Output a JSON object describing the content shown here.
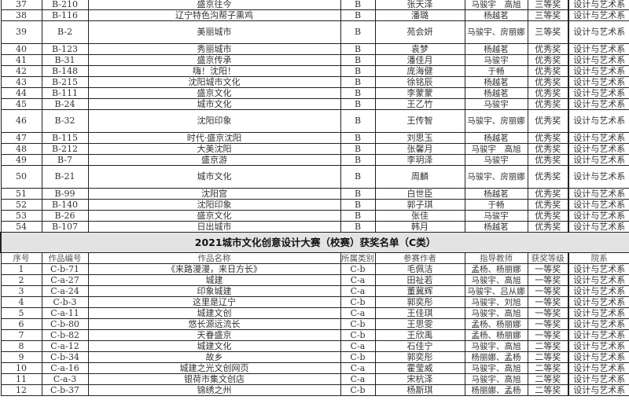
{
  "section_b_rows": [
    {
      "no": "37",
      "code": "B-210",
      "title": "盛京往今",
      "category": "B",
      "author": "张天泽",
      "teacher": "马骏宇　高旭",
      "award": "三等奖",
      "dept": "设计与艺术系"
    },
    {
      "no": "38",
      "code": "B-116",
      "title": "辽宁特色沟帮子熏鸡",
      "category": "B",
      "author": "潘璐",
      "teacher": "杨越茗",
      "award": "三等奖",
      "dept": "设计与艺术系"
    },
    {
      "no": "39",
      "code": "B-2",
      "title": "美丽城市",
      "category": "B",
      "author": "苑会妍",
      "teacher": "马骏宇、房丽娜",
      "award": "三等奖",
      "dept": "设计与艺术系",
      "tall": true
    },
    {
      "no": "40",
      "code": "B-123",
      "title": "秀丽城市",
      "category": "B",
      "author": "袁梦",
      "teacher": "杨越茗",
      "award": "优秀奖",
      "dept": "设计与艺术系"
    },
    {
      "no": "41",
      "code": "B-31",
      "title": "盛京传承",
      "category": "B",
      "author": "潘佳月",
      "teacher": "马骏宇",
      "award": "优秀奖",
      "dept": "设计与艺术系"
    },
    {
      "no": "42",
      "code": "B-148",
      "title": "嗨！沈阳！",
      "category": "B",
      "author": "庞海健",
      "teacher": "于畅",
      "award": "优秀奖",
      "dept": "设计与艺术系"
    },
    {
      "no": "43",
      "code": "B-215",
      "title": "沈阳城市文化",
      "category": "B",
      "author": "徐铭辰",
      "teacher": "杨越茗",
      "award": "优秀奖",
      "dept": "设计与艺术系"
    },
    {
      "no": "44",
      "code": "B-111",
      "title": "盛京文化",
      "category": "B",
      "author": "李蒙蒙",
      "teacher": "杨越茗",
      "award": "优秀奖",
      "dept": "设计与艺术系"
    },
    {
      "no": "45",
      "code": "B-24",
      "title": "城市文化",
      "category": "B",
      "author": "王乙竹",
      "teacher": "马骏宇",
      "award": "优秀奖",
      "dept": "设计与艺术系"
    },
    {
      "no": "46",
      "code": "B-32",
      "title": "沈阳印象",
      "category": "B",
      "author": "王传智",
      "teacher": "马骏宇、房丽娜",
      "award": "优秀奖",
      "dept": "设计与艺术系",
      "tall": true
    },
    {
      "no": "47",
      "code": "B-115",
      "title": "时代·盛京沈阳",
      "category": "B",
      "author": "刘思玉",
      "teacher": "杨越茗",
      "award": "优秀奖",
      "dept": "设计与艺术系"
    },
    {
      "no": "48",
      "code": "B-212",
      "title": "大美沈阳",
      "category": "B",
      "author": "张馨月",
      "teacher": "马骏宇　高旭",
      "award": "优秀奖",
      "dept": "设计与艺术系"
    },
    {
      "no": "49",
      "code": "B-7",
      "title": "盛京游",
      "category": "B",
      "author": "李玥泽",
      "teacher": "马骏宇",
      "award": "优秀奖",
      "dept": "设计与艺术系"
    },
    {
      "no": "50",
      "code": "B-21",
      "title": "城市文化",
      "category": "B",
      "author": "周麟",
      "teacher": "马骏宇、房丽娜",
      "award": "优秀奖",
      "dept": "设计与艺术系",
      "tall": true
    },
    {
      "no": "51",
      "code": "B-99",
      "title": "沈阳宫",
      "category": "B",
      "author": "白世臣",
      "teacher": "杨越茗",
      "award": "优秀奖",
      "dept": "设计与艺术系"
    },
    {
      "no": "52",
      "code": "B-140",
      "title": "沈阳印象",
      "category": "B",
      "author": "郭子琪",
      "teacher": "于畅",
      "award": "优秀奖",
      "dept": "设计与艺术系"
    },
    {
      "no": "53",
      "code": "B-26",
      "title": "盛京文化",
      "category": "B",
      "author": "张佳",
      "teacher": "马骏宇",
      "award": "优秀奖",
      "dept": "设计与艺术系"
    },
    {
      "no": "54",
      "code": "B-107",
      "title": "日出城市",
      "category": "B",
      "author": "韩月",
      "teacher": "杨越茗",
      "award": "优秀奖",
      "dept": "设计与艺术系"
    }
  ],
  "section_c": {
    "title": "2021城市文化创意设计大赛（校赛）获奖名单（C类）",
    "headers": {
      "no": "序号",
      "code": "作品编号",
      "title": "作品名称",
      "category": "所属类别",
      "author": "参赛作者",
      "teacher": "指导教师",
      "award": "获奖等级",
      "dept": "院系"
    },
    "rows": [
      {
        "no": "1",
        "code": "C-b-71",
        "title": "《来路漫漫，来日方长》",
        "category": "C-b",
        "author": "毛佩洁",
        "teacher": "孟杨、杨丽娜",
        "award": "一等奖",
        "dept": "设计与艺术系"
      },
      {
        "no": "2",
        "code": "C-a-27",
        "title": "城建",
        "category": "C-a",
        "author": "田祉若",
        "teacher": "马骏宇、高旭",
        "award": "一等奖",
        "dept": "设计与艺术系"
      },
      {
        "no": "3",
        "code": "C-a-24",
        "title": "印象城建",
        "category": "C-a",
        "author": "董冀辉",
        "teacher": "马骏宇、吕从娜",
        "award": "一等奖",
        "dept": "设计与艺术系"
      },
      {
        "no": "4",
        "code": "C-b-3",
        "title": "这里是辽宁",
        "category": "C-b",
        "author": "郭奕彤",
        "teacher": "马骏宇、刘旭",
        "award": "一等奖",
        "dept": "设计与艺术系"
      },
      {
        "no": "5",
        "code": "C-a-11",
        "title": "城建文创",
        "category": "C-a",
        "author": "王佳琪",
        "teacher": "马骏宇、高旭",
        "award": "一等奖",
        "dept": "设计与艺术系"
      },
      {
        "no": "6",
        "code": "C-b-80",
        "title": "悠长源远流长",
        "category": "C-b",
        "author": "王思雯",
        "teacher": "孟杨、杨丽娜",
        "award": "一等奖",
        "dept": "设计与艺术系"
      },
      {
        "no": "7",
        "code": "C-b-82",
        "title": "天眷盛京",
        "category": "C-b",
        "author": "王欣禹",
        "teacher": "孟杨、杨丽娜",
        "award": "一等奖",
        "dept": "设计与艺术系"
      },
      {
        "no": "8",
        "code": "C-a-12",
        "title": "城建文化",
        "category": "C-a",
        "author": "石佳宁",
        "teacher": "马骏宇、高旭",
        "award": "二等奖",
        "dept": "设计与艺术系"
      },
      {
        "no": "9",
        "code": "C-b-34",
        "title": "故乡",
        "category": "C-b",
        "author": "郭奕彤",
        "teacher": "杨丽娜、孟杨",
        "award": "二等奖",
        "dept": "设计与艺术系"
      },
      {
        "no": "10",
        "code": "C-a-16",
        "title": "城建之光文创网页",
        "category": "C-a",
        "author": "霍莹威",
        "teacher": "马骏宇、高旭",
        "award": "二等奖",
        "dept": "设计与艺术系"
      },
      {
        "no": "11",
        "code": "C-a-3",
        "title": "银荷市集文创店",
        "category": "C-a",
        "author": "宋杭泽",
        "teacher": "马骏宇、高旭",
        "award": "二等奖",
        "dept": "设计与艺术系"
      },
      {
        "no": "12",
        "code": "C-b-37",
        "title": "锦绣之州",
        "category": "C-b",
        "author": "杨斯琪",
        "teacher": "杨丽娜、孟杨",
        "award": "二等奖",
        "dept": "设计与艺术系"
      }
    ]
  }
}
